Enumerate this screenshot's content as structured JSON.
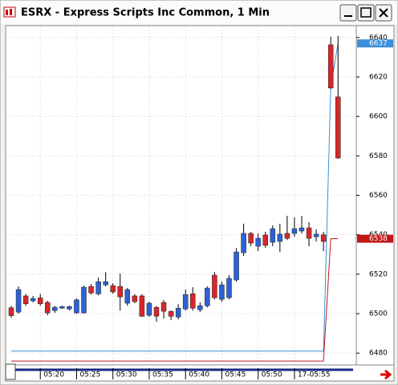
{
  "window": {
    "title": "ESRX - Express Scripts Inc Common, 1 Min"
  },
  "chart_data": {
    "type": "candlestick",
    "categories": [
      null,
      null,
      null,
      null,
      "05:20",
      null,
      null,
      null,
      null,
      "05:25",
      null,
      null,
      null,
      null,
      "05:30",
      null,
      null,
      null,
      null,
      "05:35",
      null,
      null,
      null,
      null,
      "05:40",
      null,
      null,
      null,
      null,
      "05:45",
      null,
      null,
      null,
      null,
      "05:50",
      null,
      null,
      null,
      null,
      "17-05:55",
      null,
      null,
      null,
      null,
      null,
      null
    ],
    "open": [
      6503,
      6500.8,
      6509,
      6506.5,
      6508,
      6505.7,
      6501.6,
      6502.8,
      6502.4,
      6500.4,
      6500.4,
      6513.8,
      6510,
      6514.6,
      6514.2,
      6513.8,
      6505.3,
      6509,
      6509,
      6499.2,
      6503.2,
      6505.7,
      6501.2,
      6498.3,
      6502.4,
      6510.1,
      6502,
      6504,
      6519.5,
      6507.3,
      6508.1,
      6517.1,
      6530.9,
      6540.7,
      6534.2,
      6539.9,
      6536.2,
      6536.6,
      6540.7,
      6540.7,
      6541.9,
      6543.5,
      6539,
      6540,
      6636.3,
      6609.9
    ],
    "high": [
      6504,
      6513.8,
      6510,
      6509,
      6510,
      6506.5,
      6504,
      6504,
      6504,
      6507.7,
      6514.2,
      6515,
      6518.3,
      6521,
      6515.4,
      6520.3,
      6513,
      6509.9,
      6509.9,
      6506.1,
      6504,
      6506.9,
      6501.6,
      6504.8,
      6512.2,
      6513.4,
      6505.7,
      6513.8,
      6521.1,
      6516.2,
      6519.5,
      6533.3,
      6545.6,
      6541.5,
      6540.7,
      6541.5,
      6544.7,
      6545.6,
      6549.6,
      6548.8,
      6549.6,
      6546.4,
      6542.7,
      6541.5,
      6640.4,
      6640.8
    ],
    "low": [
      6497.9,
      6500,
      6504,
      6505.7,
      6504,
      6499.2,
      6500.4,
      6502.4,
      6501.6,
      6500,
      6500,
      6509.7,
      6509.3,
      6513.8,
      6510.1,
      6501.6,
      6504,
      6505.3,
      6498.3,
      6498.3,
      6495.9,
      6497.5,
      6496.7,
      6497.1,
      6501.6,
      6501.6,
      6500.8,
      6503.2,
      6507.3,
      6506.1,
      6507.3,
      6516.2,
      6529.3,
      6534.2,
      6531.7,
      6533.4,
      6534.2,
      6531.3,
      6537.4,
      6539,
      6540.7,
      6534.2,
      6536.6,
      6531.7,
      6614,
      6578.5
    ],
    "close": [
      6499,
      6512.2,
      6505,
      6507.7,
      6505,
      6500.4,
      6503.2,
      6503.6,
      6503.6,
      6507,
      6513.4,
      6510.5,
      6516.2,
      6516.2,
      6511,
      6508.5,
      6512.2,
      6506.1,
      6498.7,
      6505.3,
      6498.7,
      6501.2,
      6498.7,
      6502.8,
      6509.7,
      6502.8,
      6504,
      6513,
      6508.1,
      6514.6,
      6517.9,
      6531.3,
      6540.7,
      6535.8,
      6538.2,
      6534.6,
      6543.1,
      6540.3,
      6538.2,
      6543.1,
      6543.5,
      6538.2,
      6540.3,
      6536.6,
      6614.4,
      6578.9
    ],
    "up_color": "#2b63d6",
    "down_color": "#d8262a",
    "lines": [
      {
        "color": "#3a90d8",
        "values": [
          6481,
          6481,
          6481,
          6481,
          6481,
          6481,
          6481,
          6481,
          6481,
          6481,
          6481,
          6481,
          6481,
          6481,
          6481,
          6481,
          6481,
          6481,
          6481,
          6481,
          6481,
          6481,
          6481,
          6481,
          6481,
          6481,
          6481,
          6481,
          6481,
          6481,
          6481,
          6481,
          6481,
          6481,
          6481,
          6481,
          6481,
          6481,
          6481,
          6481,
          6481,
          6481,
          6481,
          6481,
          6615,
          6637
        ]
      },
      {
        "color": "#c01818",
        "values": [
          6476,
          6476,
          6476,
          6476,
          6476,
          6476,
          6476,
          6476,
          6476,
          6476,
          6476,
          6476,
          6476,
          6476,
          6476,
          6476,
          6476,
          6476,
          6476,
          6476,
          6476,
          6476,
          6476,
          6476,
          6476,
          6476,
          6476,
          6476,
          6476,
          6476,
          6476,
          6476,
          6476,
          6476,
          6476,
          6476,
          6476,
          6476,
          6476,
          6476,
          6476,
          6476,
          6476,
          6476,
          6538,
          6538
        ]
      }
    ],
    "ylim": [
      6474,
      6646
    ],
    "yticks": [
      6480,
      6500,
      6520,
      6540,
      6560,
      6580,
      6600,
      6620,
      6640
    ],
    "grid": true
  }
}
